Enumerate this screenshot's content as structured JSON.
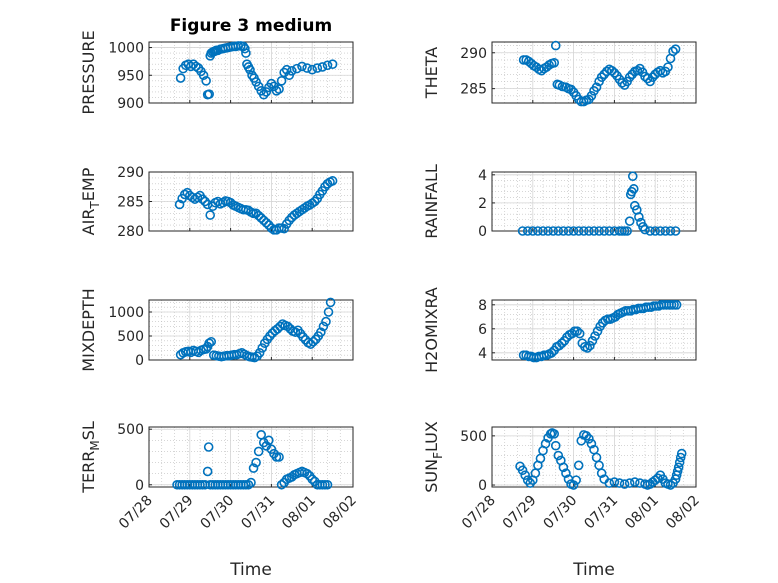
{
  "figure": {
    "title": "Figure 3 medium"
  },
  "colors": {
    "marker": "#0072BD",
    "axis": "#262626",
    "grid": "#bdbdbd",
    "box": "#ffffff"
  },
  "xaxis": {
    "label": "Time",
    "tick_labels": [
      "07/28",
      "07/29",
      "07/30",
      "07/31",
      "08/01",
      "08/02"
    ]
  },
  "chart_data": [
    {
      "type": "scatter",
      "ylabel": "PRESSURE",
      "ylim": [
        900,
        1010
      ],
      "yticks": [
        900,
        950,
        1000
      ],
      "yticklabels": [
        "900",
        "950",
        "1000"
      ],
      "xlim": [
        0,
        4
      ],
      "grid": true,
      "x": [
        0.62,
        0.67,
        0.72,
        0.77,
        0.82,
        0.87,
        0.92,
        0.97,
        1.02,
        1.07,
        1.12,
        1.15,
        1.18,
        1.2,
        1.22,
        1.25,
        1.28,
        1.3,
        1.32,
        1.35,
        1.4,
        1.45,
        1.5,
        1.55,
        1.6,
        1.65,
        1.7,
        1.75,
        1.8,
        1.85,
        1.88,
        1.9,
        1.92,
        1.95,
        1.98,
        2.02,
        2.06,
        2.1,
        2.15,
        2.2,
        2.25,
        2.3,
        2.35,
        2.4,
        2.45,
        2.5,
        2.55,
        2.6,
        2.65,
        2.7,
        2.75,
        2.8,
        2.9,
        3.0,
        3.1,
        3.2,
        3.3,
        3.4,
        3.5,
        3.6
      ],
      "y": [
        945,
        962,
        968,
        970,
        966,
        970,
        966,
        963,
        957,
        950,
        940,
        915,
        916,
        985,
        990,
        992,
        993,
        994,
        995,
        995,
        997,
        998,
        999,
        1000,
        1001,
        1002,
        1002,
        1003,
        1003,
        1002,
        998,
        990,
        970,
        965,
        960,
        950,
        945,
        938,
        930,
        922,
        915,
        920,
        928,
        935,
        930,
        922,
        925,
        940,
        955,
        960,
        950,
        958,
        962,
        966,
        963,
        960,
        963,
        965,
        968,
        970
      ]
    },
    {
      "type": "scatter",
      "ylabel": "THETA",
      "ylim": [
        283,
        291.5
      ],
      "yticks": [
        285,
        290
      ],
      "yticklabels": [
        "285",
        "290"
      ],
      "xlim": [
        0,
        4
      ],
      "grid": true,
      "x": [
        0.62,
        0.67,
        0.72,
        0.77,
        0.82,
        0.87,
        0.92,
        0.97,
        1.02,
        1.07,
        1.12,
        1.17,
        1.22,
        1.25,
        1.28,
        1.32,
        1.38,
        1.45,
        1.5,
        1.55,
        1.6,
        1.65,
        1.7,
        1.75,
        1.8,
        1.85,
        1.9,
        1.95,
        2.0,
        2.05,
        2.1,
        2.15,
        2.2,
        2.25,
        2.3,
        2.35,
        2.4,
        2.45,
        2.5,
        2.55,
        2.6,
        2.65,
        2.7,
        2.75,
        2.8,
        2.85,
        2.9,
        2.95,
        3.0,
        3.05,
        3.1,
        3.15,
        3.2,
        3.25,
        3.3,
        3.35,
        3.4,
        3.45,
        3.5,
        3.55,
        3.6
      ],
      "y": [
        289,
        289,
        288.8,
        288.5,
        288.2,
        288,
        287.7,
        287.5,
        287.8,
        288,
        288.3,
        288.5,
        288.6,
        291,
        285.6,
        285.5,
        285.3,
        285.2,
        285,
        284.9,
        284.5,
        284,
        283.5,
        283.2,
        283.2,
        283.4,
        283.5,
        284,
        284.7,
        285.2,
        286,
        286.6,
        287,
        287.4,
        287.7,
        287.5,
        287.2,
        286.8,
        286.3,
        285.8,
        285.5,
        286,
        286.6,
        287,
        287.4,
        287.5,
        287.8,
        287.3,
        286.7,
        286.4,
        286,
        286.6,
        287,
        287.3,
        287.5,
        287.2,
        287.4,
        288,
        289.2,
        290.2,
        290.5
      ]
    },
    {
      "type": "scatter",
      "ylabel": "AIR_TEMP",
      "ylim": [
        280,
        290
      ],
      "yticks": [
        280,
        285,
        290
      ],
      "yticklabels": [
        "280",
        "285",
        "290"
      ],
      "xlim": [
        0,
        4
      ],
      "grid": true,
      "x": [
        0.6,
        0.65,
        0.7,
        0.75,
        0.8,
        0.85,
        0.9,
        0.95,
        1.0,
        1.05,
        1.1,
        1.15,
        1.2,
        1.25,
        1.3,
        1.35,
        1.4,
        1.45,
        1.5,
        1.55,
        1.6,
        1.65,
        1.7,
        1.75,
        1.8,
        1.85,
        1.9,
        1.95,
        2.0,
        2.05,
        2.1,
        2.15,
        2.2,
        2.25,
        2.3,
        2.35,
        2.4,
        2.45,
        2.5,
        2.55,
        2.6,
        2.65,
        2.7,
        2.75,
        2.8,
        2.85,
        2.9,
        2.95,
        3.0,
        3.05,
        3.1,
        3.15,
        3.2,
        3.25,
        3.3,
        3.35,
        3.4,
        3.45,
        3.5,
        3.55,
        3.6
      ],
      "y": [
        284.5,
        285.5,
        286.2,
        286.5,
        286,
        285.7,
        285.4,
        285.7,
        286,
        285.4,
        285,
        284.5,
        282.7,
        284.2,
        284.8,
        285,
        284.6,
        284.8,
        285.1,
        285,
        284.8,
        284.4,
        284.2,
        284,
        283.8,
        283.6,
        283.6,
        283.5,
        283.2,
        283,
        283,
        282.6,
        282.2,
        281.8,
        281.4,
        281,
        280.5,
        280.2,
        280.2,
        280.5,
        280.5,
        280.4,
        281.2,
        281.8,
        282.3,
        282.7,
        283,
        283.3,
        283.6,
        283.9,
        284.2,
        284.4,
        284.7,
        285,
        285.5,
        286.2,
        286.8,
        287.5,
        288,
        288.3,
        288.5
      ]
    },
    {
      "type": "scatter",
      "ylabel": "RAINFALL",
      "ylim": [
        0,
        4.2
      ],
      "yticks": [
        0,
        2,
        4
      ],
      "yticklabels": [
        "0",
        "2",
        "4"
      ],
      "xlim": [
        0,
        4
      ],
      "grid": true,
      "x": [
        0.6,
        0.7,
        0.8,
        0.9,
        1.0,
        1.1,
        1.2,
        1.3,
        1.4,
        1.5,
        1.6,
        1.7,
        1.8,
        1.9,
        2.0,
        2.1,
        2.2,
        2.3,
        2.4,
        2.5,
        2.55,
        2.6,
        2.65,
        2.7,
        2.72,
        2.74,
        2.76,
        2.78,
        2.8,
        2.84,
        2.88,
        2.92,
        2.96,
        3.0,
        3.1,
        3.2,
        3.3,
        3.4,
        3.5,
        3.6
      ],
      "y": [
        0,
        0,
        0,
        0,
        0,
        0,
        0,
        0,
        0,
        0,
        0,
        0,
        0,
        0,
        0,
        0,
        0,
        0,
        0,
        0,
        0,
        0,
        0,
        0.7,
        2.6,
        2.8,
        3.9,
        3.0,
        1.8,
        1.5,
        1.0,
        0.6,
        0.3,
        0.1,
        0,
        0,
        0,
        0,
        0,
        0
      ]
    },
    {
      "type": "scatter",
      "ylabel": "MIXDEPTH",
      "ylim": [
        0,
        1250
      ],
      "yticks": [
        0,
        500,
        1000
      ],
      "yticklabels": [
        "0",
        "500",
        "1000"
      ],
      "xlim": [
        0,
        4
      ],
      "grid": true,
      "x": [
        0.62,
        0.67,
        0.72,
        0.77,
        0.82,
        0.87,
        0.92,
        0.97,
        1.02,
        1.07,
        1.12,
        1.15,
        1.18,
        1.22,
        1.27,
        1.32,
        1.37,
        1.42,
        1.47,
        1.52,
        1.57,
        1.62,
        1.67,
        1.72,
        1.77,
        1.82,
        1.87,
        1.92,
        1.97,
        2.02,
        2.07,
        2.12,
        2.17,
        2.22,
        2.27,
        2.32,
        2.37,
        2.42,
        2.47,
        2.52,
        2.57,
        2.62,
        2.67,
        2.72,
        2.77,
        2.82,
        2.87,
        2.92,
        2.97,
        3.02,
        3.07,
        3.12,
        3.17,
        3.22,
        3.27,
        3.32,
        3.37,
        3.42,
        3.47,
        3.52,
        3.56
      ],
      "y": [
        110,
        150,
        170,
        180,
        160,
        200,
        180,
        160,
        200,
        220,
        230,
        280,
        350,
        380,
        100,
        90,
        80,
        70,
        80,
        90,
        90,
        100,
        110,
        110,
        130,
        150,
        120,
        90,
        70,
        60,
        50,
        80,
        150,
        250,
        350,
        430,
        500,
        560,
        610,
        650,
        700,
        750,
        720,
        700,
        650,
        600,
        580,
        620,
        550,
        480,
        420,
        360,
        330,
        380,
        430,
        500,
        580,
        700,
        800,
        1000,
        1200
      ]
    },
    {
      "type": "scatter",
      "ylabel": "H2OMIXRA",
      "ylim": [
        3.4,
        8.4
      ],
      "yticks": [
        4,
        6,
        8
      ],
      "yticklabels": [
        "4",
        "6",
        "8"
      ],
      "xlim": [
        0,
        4
      ],
      "grid": true,
      "x": [
        0.62,
        0.67,
        0.72,
        0.77,
        0.82,
        0.87,
        0.92,
        0.97,
        1.02,
        1.07,
        1.12,
        1.17,
        1.22,
        1.27,
        1.32,
        1.37,
        1.42,
        1.47,
        1.52,
        1.57,
        1.62,
        1.67,
        1.72,
        1.77,
        1.82,
        1.87,
        1.92,
        1.97,
        2.02,
        2.07,
        2.12,
        2.17,
        2.22,
        2.27,
        2.32,
        2.37,
        2.42,
        2.47,
        2.52,
        2.57,
        2.62,
        2.67,
        2.72,
        2.77,
        2.82,
        2.87,
        2.92,
        2.97,
        3.02,
        3.07,
        3.12,
        3.17,
        3.22,
        3.27,
        3.32,
        3.37,
        3.42,
        3.47,
        3.52,
        3.57,
        3.62
      ],
      "y": [
        3.8,
        3.8,
        3.7,
        3.7,
        3.6,
        3.6,
        3.7,
        3.7,
        3.8,
        3.8,
        3.9,
        4.0,
        4.2,
        4.5,
        4.6,
        4.8,
        5.0,
        5.3,
        5.5,
        5.6,
        5.8,
        5.8,
        5.6,
        4.8,
        4.5,
        4.4,
        4.6,
        5.0,
        5.4,
        5.8,
        6.2,
        6.5,
        6.7,
        6.8,
        6.8,
        6.9,
        7.0,
        7.2,
        7.3,
        7.4,
        7.5,
        7.5,
        7.5,
        7.6,
        7.6,
        7.7,
        7.7,
        7.7,
        7.8,
        7.8,
        7.8,
        7.9,
        7.9,
        7.9,
        8.0,
        8.0,
        8.0,
        8.0,
        8.0,
        8.0,
        8.0
      ]
    },
    {
      "type": "scatter",
      "ylabel": "TERR_MSL",
      "ylim": [
        -20,
        520
      ],
      "yticks": [
        0,
        500
      ],
      "yticklabels": [
        "0",
        "500"
      ],
      "xlim": [
        0,
        4
      ],
      "grid": true,
      "x": [
        0.55,
        0.6,
        0.65,
        0.7,
        0.75,
        0.8,
        0.85,
        0.9,
        0.95,
        1.0,
        1.05,
        1.1,
        1.15,
        1.17,
        1.2,
        1.25,
        1.3,
        1.35,
        1.4,
        1.45,
        1.5,
        1.55,
        1.6,
        1.65,
        1.7,
        1.75,
        1.8,
        1.85,
        1.9,
        1.95,
        2.0,
        2.05,
        2.1,
        2.15,
        2.2,
        2.25,
        2.3,
        2.35,
        2.4,
        2.45,
        2.5,
        2.55,
        2.6,
        2.65,
        2.7,
        2.75,
        2.8,
        2.85,
        2.9,
        2.95,
        3.0,
        3.05,
        3.1,
        3.15,
        3.2,
        3.25,
        3.3,
        3.35,
        3.4,
        3.45,
        3.5
      ],
      "y": [
        0,
        0,
        0,
        0,
        0,
        0,
        0,
        0,
        0,
        0,
        0,
        0,
        120,
        340,
        0,
        0,
        0,
        0,
        0,
        0,
        0,
        0,
        0,
        0,
        0,
        0,
        0,
        0,
        0,
        0,
        20,
        150,
        200,
        300,
        450,
        380,
        350,
        400,
        320,
        280,
        250,
        250,
        0,
        20,
        50,
        60,
        70,
        90,
        100,
        110,
        120,
        110,
        100,
        80,
        50,
        30,
        0,
        0,
        0,
        0,
        0
      ]
    },
    {
      "type": "scatter",
      "ylabel": "SUN_FLUX",
      "ylim": [
        -20,
        590
      ],
      "yticks": [
        0,
        500
      ],
      "yticklabels": [
        "0",
        "500"
      ],
      "xlim": [
        0,
        4
      ],
      "grid": true,
      "x": [
        0.55,
        0.6,
        0.65,
        0.7,
        0.75,
        0.8,
        0.85,
        0.9,
        0.95,
        1.0,
        1.05,
        1.1,
        1.15,
        1.18,
        1.22,
        1.25,
        1.3,
        1.35,
        1.4,
        1.45,
        1.5,
        1.55,
        1.6,
        1.65,
        1.7,
        1.75,
        1.8,
        1.85,
        1.9,
        1.95,
        2.0,
        2.05,
        2.1,
        2.15,
        2.2,
        2.3,
        2.4,
        2.5,
        2.6,
        2.7,
        2.8,
        2.9,
        3.0,
        3.05,
        3.1,
        3.15,
        3.2,
        3.25,
        3.3,
        3.35,
        3.4,
        3.45,
        3.5,
        3.55,
        3.6,
        3.62,
        3.64,
        3.66,
        3.68,
        3.7,
        3.72
      ],
      "y": [
        190,
        150,
        100,
        50,
        20,
        50,
        120,
        200,
        270,
        350,
        420,
        480,
        520,
        530,
        520,
        400,
        300,
        250,
        180,
        120,
        60,
        10,
        0,
        50,
        200,
        450,
        510,
        500,
        470,
        420,
        360,
        280,
        200,
        120,
        60,
        20,
        30,
        20,
        10,
        20,
        30,
        20,
        10,
        0,
        10,
        30,
        50,
        70,
        100,
        60,
        20,
        10,
        0,
        20,
        60,
        100,
        140,
        180,
        230,
        280,
        320
      ]
    }
  ]
}
